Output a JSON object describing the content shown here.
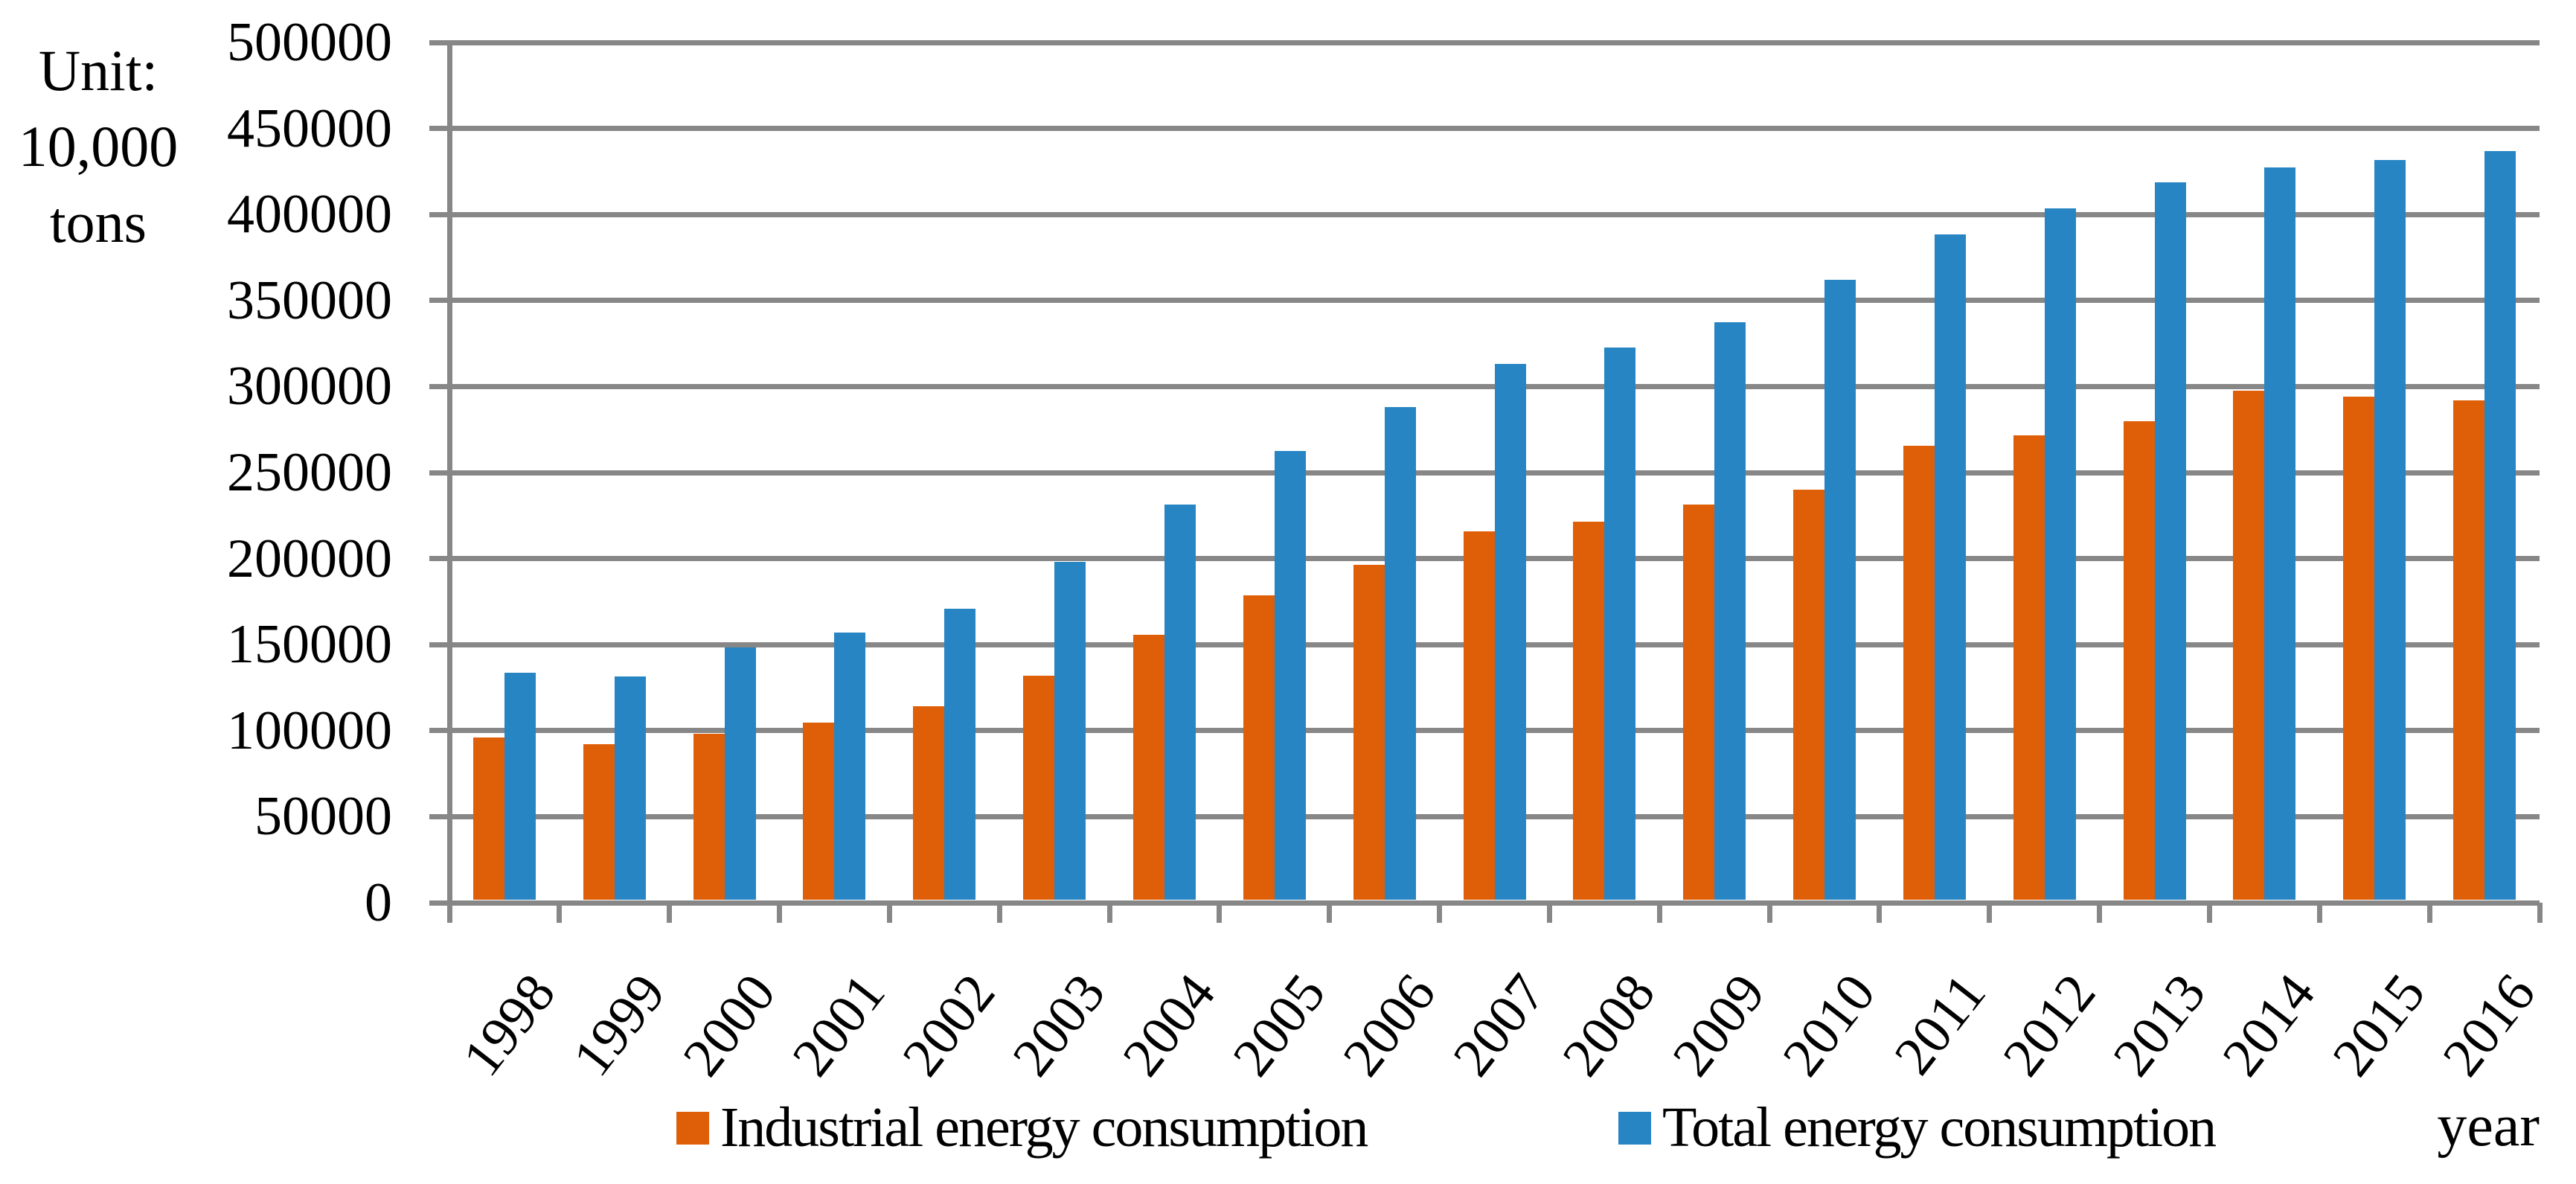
{
  "unit_label": {
    "lines": [
      "Unit:",
      "10,000",
      "tons"
    ]
  },
  "x_axis_title": "year",
  "chart_data": {
    "type": "bar",
    "title": "",
    "unit_label": "Unit: 10,000 tons",
    "xlabel": "year",
    "ylabel": "Unit: 10,000 tons",
    "categories": [
      "1998",
      "1999",
      "2000",
      "2001",
      "2002",
      "2003",
      "2004",
      "2005",
      "2006",
      "2007",
      "2008",
      "2009",
      "2010",
      "2011",
      "2012",
      "2013",
      "2014",
      "2015",
      "2016"
    ],
    "series": [
      {
        "name": "Industrial energy consumption",
        "color": "#DF5F08",
        "values": [
          94500,
          90500,
          96500,
          103000,
          112500,
          130500,
          154000,
          177000,
          195000,
          214500,
          220000,
          230000,
          238500,
          264000,
          270000,
          278500,
          296000,
          292500,
          290500
        ]
      },
      {
        "name": "Total energy consumption",
        "color": "#2785C4",
        "values": [
          132000,
          130000,
          147000,
          155500,
          169500,
          196500,
          230000,
          261000,
          286500,
          311500,
          321000,
          336000,
          360500,
          387000,
          402000,
          417000,
          426000,
          430000,
          435500
        ]
      }
    ],
    "ylim": [
      0,
      500000
    ],
    "ytick_step": 50000,
    "ytick_labels": [
      "0",
      "50000",
      "100000",
      "150000",
      "200000",
      "250000",
      "300000",
      "350000",
      "400000",
      "450000",
      "500000"
    ],
    "grid": true,
    "legend_position": "bottom",
    "x_tick_rotation_deg": -52,
    "gridline_color": "#878787",
    "axis_color": "#878787",
    "text_color": "#000000",
    "background_color": "#FFFFFF"
  }
}
